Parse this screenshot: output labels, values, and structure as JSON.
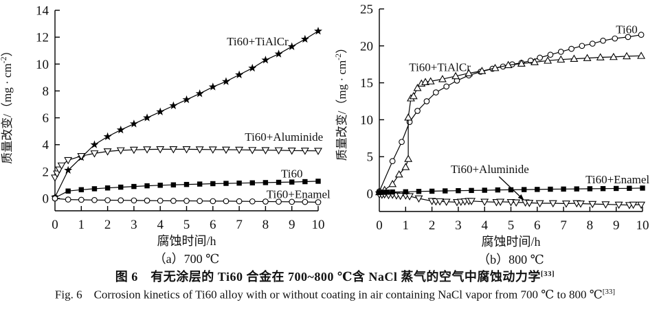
{
  "figure": {
    "caption_zh": "图 6　有无涂层的 Ti60 合金在 700~800 ℃含 NaCl 蒸气的空气中腐蚀动力学",
    "caption_zh_ref": "[33]",
    "caption_en": "Fig. 6　Corrosion kinetics of Ti60 alloy with or without coating in air containing NaCl vapor from 700 ℃ to 800 ℃",
    "caption_en_ref": "[33]"
  },
  "chart_data": [
    {
      "type": "line",
      "title": "（a）700 ℃",
      "xlabel": "腐蚀时间/h",
      "ylabel": "质量改变/（mg · cm⁻²）",
      "ylabel_parts": [
        {
          "t": "质量改变/（mg · cm"
        },
        {
          "t": "-2",
          "sup": true
        },
        {
          "t": "）"
        }
      ],
      "xlim": [
        0,
        10
      ],
      "ylim": [
        -0.9,
        14
      ],
      "xticks": [
        0,
        1,
        2,
        3,
        4,
        5,
        6,
        7,
        8,
        9,
        10
      ],
      "yticks": [
        0,
        2,
        4,
        6,
        8,
        10,
        12,
        14
      ],
      "grid": false,
      "legend": "inline-labels",
      "line_color": "#000000",
      "series": [
        {
          "name": "Ti60+TiAlCr",
          "marker": "star-filled",
          "x": [
            0,
            0.5,
            1,
            1.5,
            2,
            2.5,
            3,
            3.5,
            4,
            4.5,
            5,
            5.5,
            6,
            6.5,
            7,
            7.5,
            8,
            8.5,
            9,
            9.5,
            10
          ],
          "y": [
            0.1,
            2.1,
            3.05,
            4.0,
            4.6,
            5.1,
            5.55,
            6.0,
            6.45,
            6.9,
            7.35,
            7.8,
            8.3,
            8.7,
            9.2,
            9.7,
            10.3,
            10.75,
            11.3,
            11.85,
            12.45
          ]
        },
        {
          "name": "Ti60+Aluminide",
          "marker": "triangle-down-open",
          "x": [
            0,
            0.08,
            0.16,
            0.25,
            0.5,
            1,
            1.5,
            2,
            2.5,
            3,
            3.5,
            4,
            4.5,
            5,
            5.5,
            6,
            6.5,
            7,
            7.5,
            8,
            8.5,
            9,
            9.5,
            10
          ],
          "y": [
            1.55,
            1.85,
            2.15,
            2.45,
            2.85,
            3.15,
            3.35,
            3.5,
            3.58,
            3.62,
            3.65,
            3.66,
            3.66,
            3.66,
            3.65,
            3.64,
            3.63,
            3.62,
            3.6,
            3.59,
            3.58,
            3.56,
            3.55,
            3.54
          ]
        },
        {
          "name": "Ti60",
          "marker": "square-filled",
          "x": [
            0,
            0.5,
            1,
            1.5,
            2,
            2.5,
            3,
            3.5,
            4,
            4.5,
            5,
            5.5,
            6,
            6.5,
            7,
            7.5,
            8,
            8.5,
            9,
            9.5,
            10
          ],
          "y": [
            0.05,
            0.55,
            0.65,
            0.72,
            0.78,
            0.84,
            0.89,
            0.94,
            0.98,
            1.01,
            1.04,
            1.07,
            1.1,
            1.12,
            1.14,
            1.16,
            1.18,
            1.2,
            1.22,
            1.25,
            1.28
          ]
        },
        {
          "name": "Ti60+Enamel",
          "marker": "circle-open",
          "x": [
            0,
            0.5,
            1,
            1.5,
            2,
            2.5,
            3,
            3.5,
            4,
            4.5,
            5,
            5.5,
            6,
            6.5,
            7,
            7.5,
            8,
            8.5,
            9,
            9.5,
            10
          ],
          "y": [
            0,
            -0.08,
            -0.1,
            -0.12,
            -0.13,
            -0.14,
            -0.15,
            -0.16,
            -0.17,
            -0.18,
            -0.18,
            -0.19,
            -0.2,
            -0.2,
            -0.21,
            -0.22,
            -0.23,
            -0.24,
            -0.25,
            -0.26,
            -0.28
          ]
        }
      ],
      "labels": [
        {
          "text": "Ti60+TiAlCr",
          "x": 7.7,
          "y": 11.4
        },
        {
          "text": "Ti60+Aluminide",
          "x": 8.7,
          "y": 4.3
        },
        {
          "text": "Ti60",
          "x": 9.0,
          "y": 1.55
        },
        {
          "text": "Ti60+Enamel",
          "x": 9.25,
          "y": 0.02
        }
      ]
    },
    {
      "type": "line",
      "title": "（b）800 ℃",
      "xlabel": "腐蚀时间/h",
      "ylabel": "质量改变/（mg · cm⁻²）",
      "ylabel_parts": [
        {
          "t": "质量改变/（mg · cm"
        },
        {
          "t": "-2",
          "sup": true
        },
        {
          "t": "）"
        }
      ],
      "xlim": [
        0,
        10
      ],
      "ylim": [
        -2.4,
        25
      ],
      "xticks": [
        0,
        1,
        2,
        3,
        4,
        5,
        6,
        7,
        8,
        9,
        10
      ],
      "yticks": [
        0,
        5,
        10,
        15,
        20,
        25
      ],
      "grid": false,
      "legend": "inline-labels",
      "line_color": "#000000",
      "series": [
        {
          "name": "Ti60",
          "marker": "circle-open",
          "x": [
            0,
            0.5,
            0.85,
            1.15,
            1.45,
            1.8,
            2.15,
            2.55,
            2.95,
            3.4,
            3.85,
            4.3,
            4.7,
            5.05,
            5.4,
            5.75,
            6.1,
            6.5,
            6.9,
            7.3,
            7.7,
            8.1,
            8.5,
            8.95,
            9.45,
            9.95
          ],
          "y": [
            0.3,
            4.4,
            7.0,
            9.7,
            11.2,
            12.5,
            13.7,
            14.5,
            15.3,
            16.0,
            16.5,
            16.9,
            17.2,
            17.5,
            17.7,
            18.0,
            18.4,
            18.8,
            19.2,
            19.6,
            20.0,
            20.3,
            20.7,
            21.0,
            21.2,
            21.5
          ]
        },
        {
          "name": "Ti60+TiAlCr",
          "marker": "triangle-up-open",
          "x": [
            0,
            0.2,
            0.5,
            0.75,
            1.0,
            1.1,
            1.1,
            1.2,
            1.3,
            1.45,
            1.6,
            1.75,
            1.95,
            2.4,
            2.9,
            3.4,
            3.9,
            4.4,
            4.9,
            5.4,
            5.9,
            6.4,
            6.9,
            7.4,
            7.9,
            8.4,
            8.9,
            9.4,
            9.95
          ],
          "y": [
            0.2,
            0.5,
            1.3,
            2.6,
            3.6,
            4.7,
            10.3,
            12.9,
            13.2,
            14.3,
            14.9,
            15.1,
            15.2,
            15.5,
            15.9,
            16.3,
            16.6,
            17.0,
            17.4,
            17.6,
            17.8,
            18.0,
            18.15,
            18.25,
            18.35,
            18.45,
            18.5,
            18.6,
            18.65
          ]
        },
        {
          "name": "Ti60+Aluminide",
          "marker": "triangle-down-open",
          "x": [
            0,
            0.1,
            0.2,
            0.35,
            0.5,
            0.65,
            0.8,
            1.0,
            1.15,
            1.5,
            2.0,
            2.15,
            2.3,
            2.55,
            2.95,
            3.1,
            3.25,
            3.4,
            3.5,
            4.0,
            4.45,
            4.6,
            5.0,
            5.2,
            5.55,
            5.7,
            6.1,
            6.6,
            7.1,
            7.5,
            7.65,
            8.1,
            8.6,
            9.1,
            9.5,
            9.65,
            9.95
          ],
          "y": [
            -0.1,
            -0.15,
            -0.1,
            -0.2,
            -0.15,
            -0.25,
            -0.3,
            -0.25,
            -0.35,
            -0.65,
            -1.0,
            -1.05,
            -1.05,
            -1.1,
            -1.15,
            -1.1,
            -1.05,
            -1.0,
            -1.0,
            -1.1,
            -1.15,
            -1.1,
            -1.15,
            -1.2,
            -1.2,
            -1.25,
            -1.3,
            -1.3,
            -1.35,
            -1.3,
            -1.35,
            -1.4,
            -1.45,
            -1.5,
            -1.55,
            -1.5,
            -1.5
          ]
        },
        {
          "name": "Ti60+Enamel",
          "marker": "square-filled",
          "x": [
            0,
            0.15,
            0.3,
            0.5,
            1.0,
            1.5,
            2.0,
            2.5,
            3.0,
            3.5,
            4.0,
            4.5,
            5.0,
            5.5,
            6.0,
            6.5,
            7.0,
            7.5,
            8.0,
            8.5,
            9.0,
            9.5,
            10.0
          ],
          "y": [
            0.15,
            0.18,
            0.2,
            0.22,
            0.25,
            0.3,
            0.33,
            0.37,
            0.4,
            0.43,
            0.46,
            0.5,
            0.52,
            0.55,
            0.57,
            0.6,
            0.62,
            0.64,
            0.66,
            0.68,
            0.7,
            0.72,
            0.75
          ]
        }
      ],
      "labels": [
        {
          "text": "Ti60+TiAlCr",
          "x": 2.3,
          "y": 16.6
        },
        {
          "text": "Ti60",
          "x": 9.4,
          "y": 21.7
        },
        {
          "text": "Ti60+Aluminide",
          "x": 4.2,
          "y": 2.8
        },
        {
          "text": "Ti60+Enamel",
          "x": 9.05,
          "y": 1.4
        }
      ],
      "arrow": {
        "x1": 4.55,
        "y1": 2.3,
        "x2": 5.5,
        "y2": -0.9
      }
    }
  ]
}
